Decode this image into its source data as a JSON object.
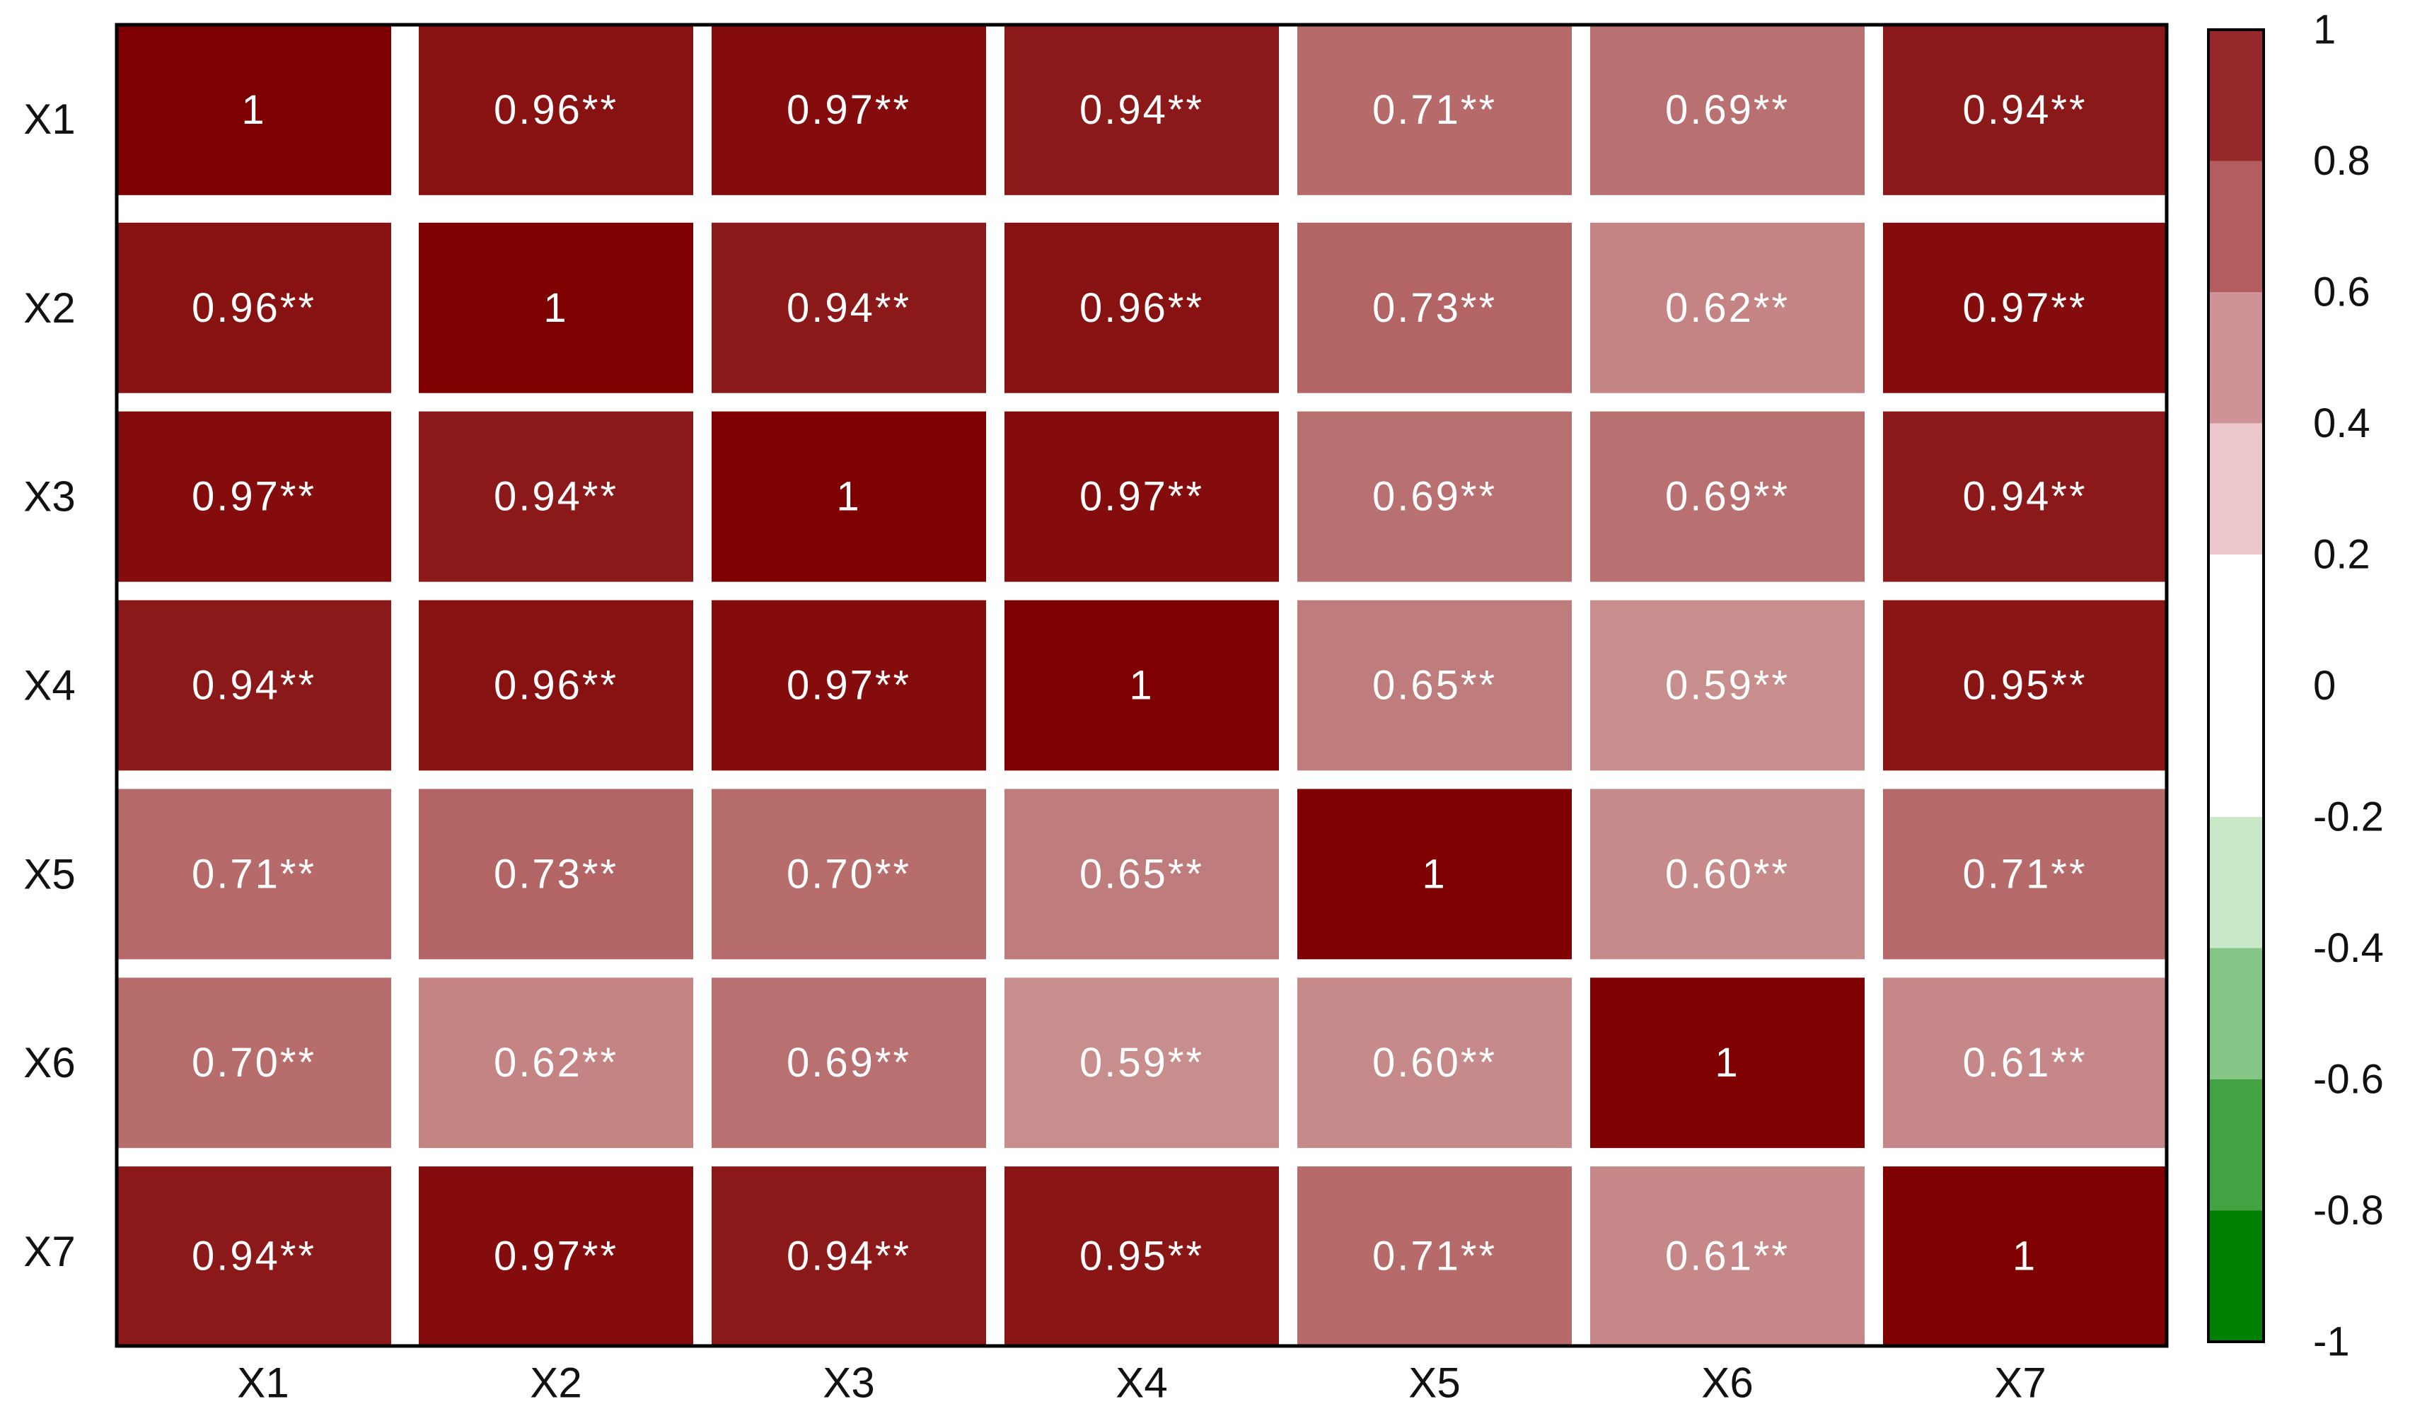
{
  "chart_data": {
    "type": "heatmap",
    "title": "",
    "xlabel": "",
    "ylabel": "",
    "rows": [
      "X1",
      "X2",
      "X3",
      "X4",
      "X5",
      "X6",
      "X7"
    ],
    "columns": [
      "X1",
      "X2",
      "X3",
      "X4",
      "X5",
      "X6",
      "X7"
    ],
    "values": [
      [
        1,
        0.96,
        0.97,
        0.94,
        0.71,
        0.69,
        0.94
      ],
      [
        0.96,
        1,
        0.94,
        0.96,
        0.73,
        0.62,
        0.97
      ],
      [
        0.97,
        0.94,
        1,
        0.97,
        0.69,
        0.69,
        0.94
      ],
      [
        0.94,
        0.96,
        0.97,
        1,
        0.65,
        0.59,
        0.95
      ],
      [
        0.71,
        0.73,
        0.7,
        0.65,
        1,
        0.6,
        0.71
      ],
      [
        0.7,
        0.62,
        0.69,
        0.59,
        0.6,
        1,
        0.61
      ],
      [
        0.94,
        0.97,
        0.94,
        0.95,
        0.71,
        0.61,
        1
      ]
    ],
    "labels": [
      [
        "1",
        "0.96**",
        "0.97**",
        "0.94**",
        "0.71**",
        "0.69**",
        "0.94**"
      ],
      [
        "0.96**",
        "1",
        "0.94**",
        "0.96**",
        "0.73**",
        "0.62**",
        "0.97**"
      ],
      [
        "0.97**",
        "0.94**",
        "1",
        "0.97**",
        "0.69**",
        "0.69**",
        "0.94**"
      ],
      [
        "0.94**",
        "0.96**",
        "0.97**",
        "1",
        "0.65**",
        "0.59**",
        "0.95**"
      ],
      [
        "0.71**",
        "0.73**",
        "0.70**",
        "0.65**",
        "1",
        "0.60**",
        "0.71**"
      ],
      [
        "0.70**",
        "0.62**",
        "0.69**",
        "0.59**",
        "0.60**",
        "1",
        "0.61**"
      ],
      [
        "0.94**",
        "0.97**",
        "0.94**",
        "0.95**",
        "0.71**",
        "0.61**",
        "1"
      ]
    ],
    "colorbar": {
      "range": [
        -1,
        1
      ],
      "ticks": [
        "1",
        "0.8",
        "0.6",
        "0.4",
        "0.2",
        "0",
        "-0.2",
        "-0.4",
        "-0.6",
        "-0.8",
        "-1"
      ],
      "high_color": "#7f0000",
      "low_color": "#008000",
      "mid_color": "#ffffff"
    },
    "grid": true,
    "legend_position": "right"
  }
}
